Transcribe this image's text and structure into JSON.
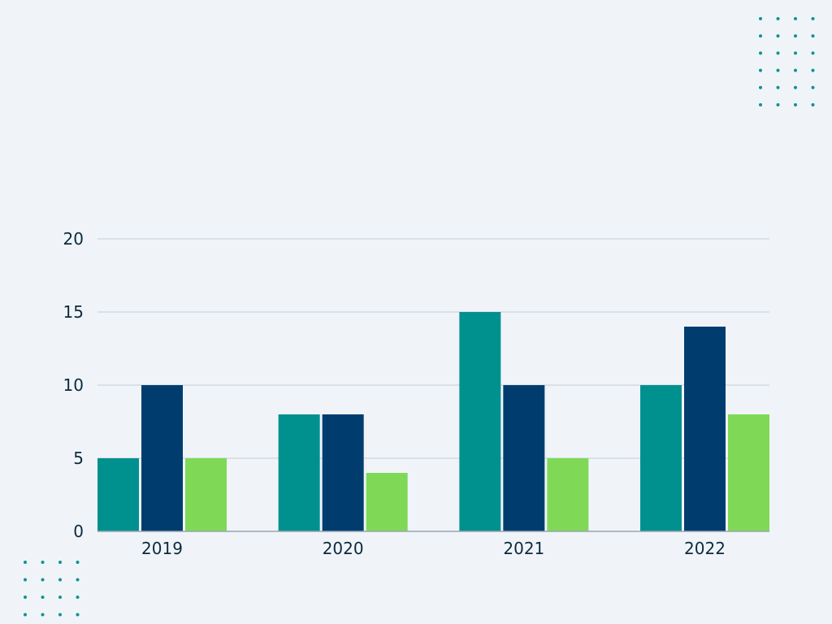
{
  "theme": {
    "background": "#f0f4f9",
    "grid_color": "#c5ccd6",
    "axis_color": "#9aa4b1",
    "text_color": "#0d2a3e",
    "dot_color": "#0f9391"
  },
  "chart_data": {
    "type": "bar",
    "categories": [
      "2019",
      "2020",
      "2021",
      "2022"
    ],
    "series": [
      {
        "color": "#00918f",
        "values": [
          5,
          8,
          15,
          10
        ]
      },
      {
        "color": "#003d6e",
        "values": [
          10,
          8,
          10,
          14
        ]
      },
      {
        "color": "#7fd957",
        "values": [
          5,
          4,
          5,
          8
        ]
      }
    ],
    "yticks": [
      "0",
      "5",
      "10",
      "15",
      "20"
    ],
    "ylim": [
      0,
      20
    ],
    "grid": true,
    "legend": "none",
    "title": "",
    "xlabel": "",
    "ylabel": ""
  },
  "decorations": {
    "dot_grid_icons": [
      "top-right-dot-grid",
      "bottom-left-dot-grid"
    ]
  }
}
